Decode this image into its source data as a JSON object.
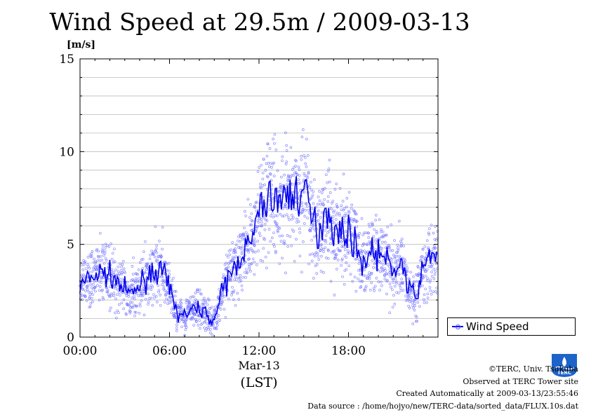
{
  "title": "Wind Speed at 29.5m / 2009-03-13",
  "legend": {
    "label": "Wind Speed"
  },
  "credits": {
    "copyright": "©TERC, Univ. Tsukuba",
    "observed": "Observed at TERC Tower site",
    "created": "Created Automatically at 2009-03-13/23:55:46",
    "source": "Data source : /home/hojyo/new/TERC-data/sorted_data/FLUX.10s.dat"
  },
  "logo": {
    "text": "TERC"
  },
  "colors": {
    "line": "#0000ee",
    "points": "#6666ff",
    "grid": "#bbbbbb"
  },
  "chart_data": {
    "type": "line",
    "title": "Wind Speed at 29.5m / 2009-03-13",
    "ylabel": "[m/s]",
    "xlabel": "(LST)",
    "x_date_label": "Mar-13",
    "ylim": [
      0,
      15
    ],
    "xlim_hours": [
      0,
      24
    ],
    "y_ticks": [
      "0",
      "5",
      "10",
      "15"
    ],
    "x_ticks": [
      "00:00",
      "06:00",
      "12:00",
      "18:00"
    ],
    "grid": "horizontal",
    "legend_position": "bottom-right outside",
    "series": [
      {
        "name": "Wind Speed",
        "style": "line with scatter points",
        "x_hours": [
          0,
          0.5,
          1,
          1.5,
          2,
          2.5,
          3,
          3.5,
          4,
          4.5,
          5,
          5.5,
          6,
          6.5,
          7,
          7.5,
          8,
          8.5,
          9,
          9.5,
          10,
          10.5,
          11,
          11.5,
          12,
          12.5,
          13,
          13.5,
          14,
          14.5,
          15,
          15.5,
          16,
          16.5,
          17,
          17.5,
          18,
          18.5,
          19,
          19.5,
          20,
          20.5,
          21,
          21.5,
          22,
          22.5,
          23,
          23.5
        ],
        "values": [
          2.7,
          3.1,
          3.3,
          3.5,
          3.3,
          3.0,
          2.5,
          2.3,
          2.8,
          3.3,
          3.6,
          3.5,
          2.6,
          1.3,
          1.2,
          1.4,
          1.6,
          1.2,
          0.9,
          2.3,
          3.3,
          3.9,
          4.8,
          5.0,
          6.8,
          7.4,
          7.6,
          7.3,
          7.8,
          7.6,
          8.0,
          6.5,
          5.5,
          7.2,
          5.8,
          5.5,
          5.8,
          4.8,
          4.0,
          4.6,
          4.5,
          4.2,
          3.4,
          4.2,
          2.6,
          2.2,
          3.6,
          4.5
        ]
      }
    ]
  }
}
